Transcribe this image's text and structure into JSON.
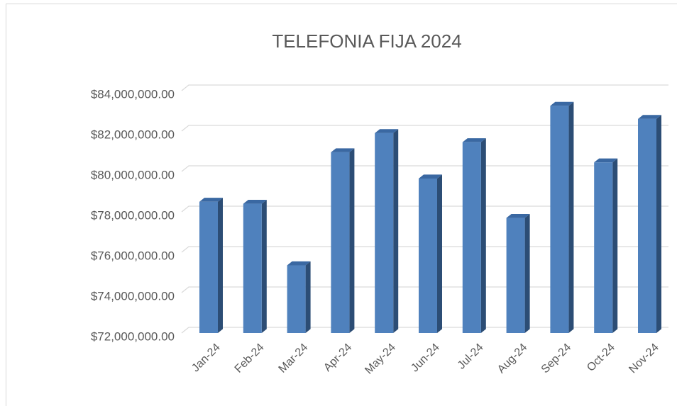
{
  "chart_data": {
    "type": "bar3d",
    "title": "TELEFONIA FIJA 2024",
    "categories": [
      "Jan-24",
      "Feb-24",
      "Mar-24",
      "Apr-24",
      "May-24",
      "Jun-24",
      "Jul-24",
      "Aug-24",
      "Sep-24",
      "Oct-24",
      "Nov-24"
    ],
    "values": [
      78500000,
      78400000,
      75350000,
      80950000,
      81900000,
      79650000,
      81450000,
      77700000,
      83250000,
      80450000,
      82600000
    ],
    "color": "#4f81bd",
    "ylim": [
      72000000,
      84000000
    ],
    "yticks": [
      {
        "value": 72000000,
        "label": "$72,000,000.00"
      },
      {
        "value": 74000000,
        "label": "$74,000,000.00"
      },
      {
        "value": 76000000,
        "label": "$76,000,000.00"
      },
      {
        "value": 78000000,
        "label": "$78,000,000.00"
      },
      {
        "value": 80000000,
        "label": "$80,000,000.00"
      },
      {
        "value": 82000000,
        "label": "$82,000,000.00"
      },
      {
        "value": 84000000,
        "label": "$84,000,000.00"
      }
    ],
    "grid": true
  }
}
